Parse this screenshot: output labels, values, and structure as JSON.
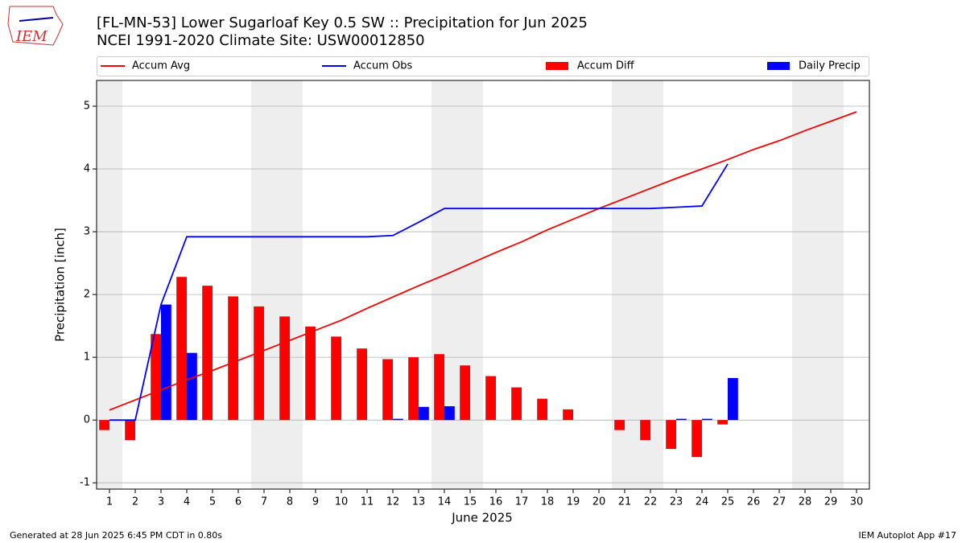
{
  "logo_text": "IEM",
  "footer": {
    "left": "Generated at 28 Jun 2025 6:45 PM CDT in 0.80s",
    "right": "IEM Autoplot App #17"
  },
  "chart_data": {
    "type": "bar",
    "title": "[FL-MN-53] Lower Sugarloaf Key 0.5 SW :: Precipitation for Jun 2025",
    "subtitle": "NCEI 1991-2020 Climate Site: USW00012850",
    "xlabel": "June 2025",
    "ylabel": "Precipitation [inch]",
    "x": [
      1,
      2,
      3,
      4,
      5,
      6,
      7,
      8,
      9,
      10,
      11,
      12,
      13,
      14,
      15,
      16,
      17,
      18,
      19,
      20,
      21,
      22,
      23,
      24,
      25,
      26,
      27,
      28,
      29,
      30
    ],
    "xlim": [
      0.5,
      30.5
    ],
    "xticks": [
      1,
      2,
      3,
      4,
      5,
      6,
      7,
      8,
      9,
      10,
      11,
      12,
      13,
      14,
      15,
      16,
      17,
      18,
      19,
      20,
      21,
      22,
      23,
      24,
      25,
      26,
      27,
      28,
      29,
      30
    ],
    "ylim": [
      -1.1,
      5.41
    ],
    "yticks": [
      -1,
      0,
      1,
      2,
      3,
      4,
      5
    ],
    "grid": true,
    "shaded_ranges": [
      [
        0.5,
        1.5
      ],
      [
        6.5,
        8.5
      ],
      [
        13.5,
        15.5
      ],
      [
        20.5,
        22.5
      ],
      [
        27.5,
        29.5
      ]
    ],
    "shade_color": "#eeeeee",
    "series": [
      {
        "name": "Accum Avg",
        "type": "line",
        "color": "#ff0000",
        "values": [
          0.16,
          0.32,
          0.48,
          0.64,
          0.79,
          0.95,
          1.11,
          1.27,
          1.43,
          1.59,
          1.78,
          1.96,
          2.14,
          2.31,
          2.49,
          2.67,
          2.84,
          3.03,
          3.2,
          3.37,
          3.53,
          3.69,
          3.85,
          4.0,
          4.15,
          4.31,
          4.45,
          4.61,
          4.76,
          4.91
        ]
      },
      {
        "name": "Accum Obs",
        "type": "line",
        "color": "#0000ff",
        "values": [
          0,
          0,
          1.84,
          2.92,
          2.92,
          2.92,
          2.92,
          2.92,
          2.92,
          2.92,
          2.92,
          2.94,
          3.15,
          3.37,
          3.37,
          3.37,
          3.37,
          3.37,
          3.37,
          3.37,
          3.37,
          3.37,
          3.39,
          3.41,
          4.08,
          null,
          null,
          null,
          null,
          null
        ]
      },
      {
        "name": "Accum Diff",
        "type": "bar",
        "color": "#ff0000",
        "values": [
          -0.16,
          -0.32,
          1.37,
          2.28,
          2.14,
          1.97,
          1.81,
          1.65,
          1.49,
          1.33,
          1.14,
          0.97,
          1.0,
          1.05,
          0.87,
          0.7,
          0.52,
          0.34,
          0.17,
          0,
          -0.16,
          -0.32,
          -0.46,
          -0.59,
          -0.07,
          null,
          null,
          null,
          null,
          null
        ]
      },
      {
        "name": "Daily Precip",
        "type": "bar",
        "color": "#0000ff",
        "values": [
          0,
          0,
          1.84,
          1.07,
          0,
          0,
          0,
          0,
          0,
          0,
          0,
          0.02,
          0.21,
          0.22,
          0,
          0,
          0,
          0,
          0,
          0,
          0,
          0,
          0.02,
          0.02,
          0.67,
          null,
          null,
          null,
          null,
          null
        ]
      }
    ]
  }
}
